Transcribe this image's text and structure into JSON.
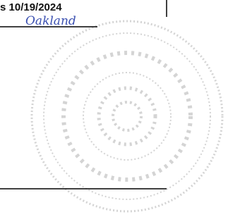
{
  "notary": {
    "date_text": "s 10/19/2024",
    "county_handwritten": "Oakland"
  }
}
